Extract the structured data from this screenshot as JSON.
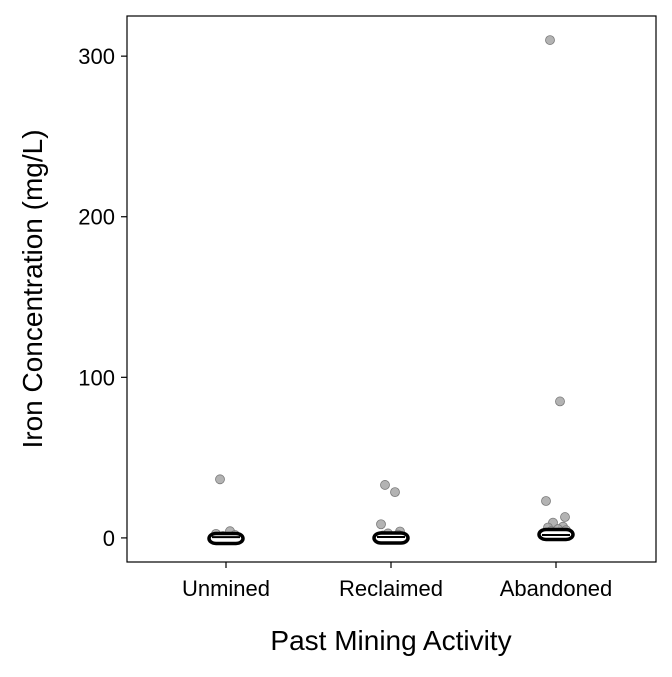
{
  "chart_data": {
    "type": "scatter",
    "title": "",
    "xlabel": "Past Mining Activity",
    "ylabel": "Iron Concentration (mg/L)",
    "categories": [
      "Unmined",
      "Reclaimed",
      "Abandoned"
    ],
    "ylim": [
      -15,
      325
    ],
    "yticks": [
      0,
      100,
      200,
      300
    ],
    "grid": false,
    "legend": "none",
    "colors": {
      "outlier_fill": "#a6a6a6",
      "outlier_stroke": "#7a7a7a",
      "box_stroke": "#000000",
      "panel_border": "#000000"
    },
    "series": [
      {
        "category": "Unmined",
        "box": {
          "q1": 0.2,
          "median": 0.5,
          "q3": 0.9
        },
        "outliers": [
          36.5,
          4.2,
          2.5,
          1.8,
          1.2
        ]
      },
      {
        "category": "Reclaimed",
        "box": {
          "q1": 0.2,
          "median": 0.6,
          "q3": 1.2
        },
        "outliers": [
          33.0,
          28.5,
          8.5,
          4.0,
          2.8,
          2.0,
          1.5
        ]
      },
      {
        "category": "Abandoned",
        "box": {
          "q1": 0.8,
          "median": 1.8,
          "q3": 3.4
        },
        "outliers": [
          310.0,
          85.0,
          23.0,
          13.0,
          9.5,
          7.0,
          6.5,
          5.5,
          4.8,
          4.2
        ]
      }
    ]
  }
}
